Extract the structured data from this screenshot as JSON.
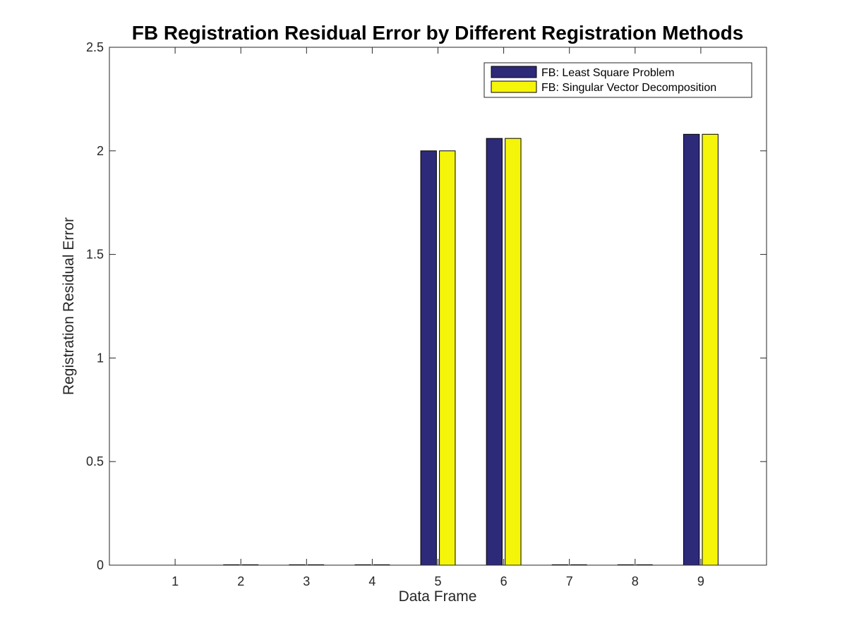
{
  "chart_data": {
    "type": "bar",
    "title": "FB Registration Residual Error by Different Registration Methods",
    "xlabel": "Data Frame",
    "ylabel": "Registration Residual Error",
    "categories": [
      "1",
      "2",
      "3",
      "4",
      "5",
      "6",
      "7",
      "8",
      "9"
    ],
    "ylim": [
      0,
      2.5
    ],
    "yticks": [
      0,
      0.5,
      1,
      1.5,
      2,
      2.5
    ],
    "ytick_labels": [
      "0",
      "0.5",
      "1",
      "1.5",
      "2",
      "2.5"
    ],
    "xlim": [
      0,
      10
    ],
    "grid": false,
    "legend_position": "top-right",
    "series": [
      {
        "name": "FB: Least Square Problem",
        "color": "#2e2a7a",
        "values": [
          0.0,
          0.002,
          0.002,
          0.002,
          2.0,
          2.06,
          0.002,
          0.002,
          2.08
        ]
      },
      {
        "name": "FB: Singular Vector Decomposition",
        "color": "#f5f50a",
        "values": [
          0.0,
          0.002,
          0.002,
          0.002,
          2.0,
          2.06,
          0.002,
          0.002,
          2.08
        ]
      }
    ]
  }
}
